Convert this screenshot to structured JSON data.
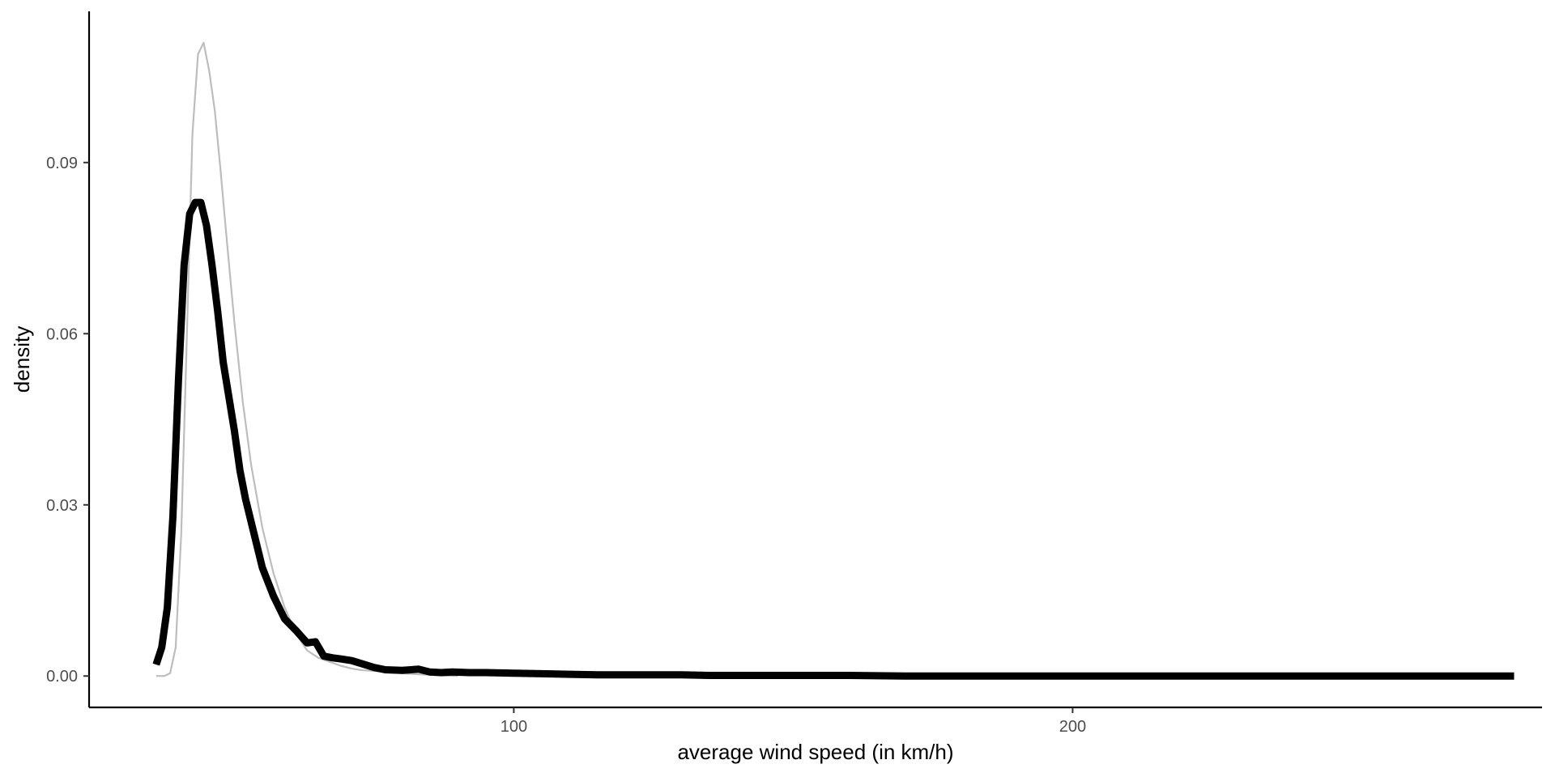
{
  "chart_data": {
    "type": "line",
    "title": "",
    "xlabel": "average wind speed (in km/h)",
    "ylabel": "density",
    "xlim": [
      24,
      284
    ],
    "ylim": [
      -0.0055,
      0.1165
    ],
    "x_ticks": [
      100,
      200
    ],
    "x_tick_labels": [
      "100",
      "200"
    ],
    "y_ticks": [
      0.0,
      0.03,
      0.06,
      0.09
    ],
    "y_tick_labels": [
      "0.00",
      "0.03",
      "0.06",
      "0.09"
    ],
    "grid": false,
    "legend": "none",
    "series": [
      {
        "color": "#bdbdbd",
        "style": "thin",
        "x": [
          36,
          37.5,
          38.5,
          39.5,
          40.5,
          41.5,
          42.5,
          43.5,
          44.5,
          45.5,
          46.5,
          47.5,
          48.5,
          50,
          51.5,
          53,
          55,
          57,
          59,
          61,
          63,
          65,
          67,
          69,
          71,
          73,
          75,
          77,
          79,
          81,
          83,
          85,
          87,
          90
        ],
        "y": [
          0.0,
          0.0,
          0.0005,
          0.005,
          0.025,
          0.06,
          0.095,
          0.109,
          0.111,
          0.106,
          0.099,
          0.089,
          0.078,
          0.062,
          0.048,
          0.037,
          0.026,
          0.018,
          0.012,
          0.0075,
          0.0045,
          0.0032,
          0.0025,
          0.0018,
          0.0013,
          0.001,
          0.0009,
          0.0008,
          0.0006,
          0.0004,
          0.0003,
          0.0002,
          0.0001,
          0.0
        ]
      },
      {
        "color": "#000000",
        "style": "thick",
        "x": [
          36,
          37,
          38,
          39,
          40,
          41,
          42,
          43,
          44,
          45,
          46,
          47,
          48,
          49,
          50,
          51,
          52,
          53,
          54,
          55,
          57,
          59,
          61,
          63,
          64.5,
          66,
          67.5,
          69,
          71,
          73,
          75,
          77,
          80,
          83,
          85,
          87,
          89,
          92,
          95,
          100,
          105,
          110,
          115,
          120,
          125,
          130,
          135,
          140,
          150,
          160,
          170,
          180,
          200,
          220,
          240,
          260,
          279
        ],
        "y": [
          0.002,
          0.005,
          0.012,
          0.028,
          0.052,
          0.072,
          0.081,
          0.083,
          0.083,
          0.079,
          0.072,
          0.064,
          0.055,
          0.049,
          0.043,
          0.036,
          0.031,
          0.027,
          0.023,
          0.019,
          0.014,
          0.01,
          0.008,
          0.0058,
          0.006,
          0.0035,
          0.0032,
          0.003,
          0.0027,
          0.0021,
          0.0015,
          0.0011,
          0.001,
          0.0012,
          0.0007,
          0.0006,
          0.0007,
          0.0006,
          0.0006,
          0.0005,
          0.0004,
          0.0003,
          0.0002,
          0.0002,
          0.0002,
          0.0002,
          0.0001,
          0.0001,
          0.0001,
          0.0001,
          0.0,
          0.0,
          0.0,
          0.0,
          0.0,
          0.0,
          0.0
        ]
      }
    ]
  }
}
